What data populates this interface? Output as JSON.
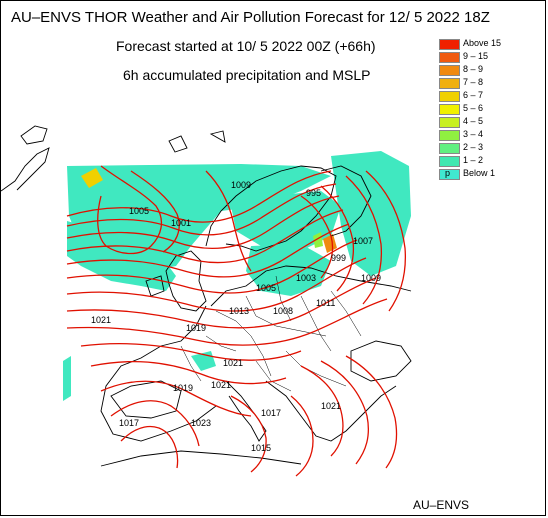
{
  "header": {
    "title": "AU–ENVS THOR Weather and Air Pollution Forecast for 12/ 5 2022  18Z",
    "subtitle": "Forecast started at 10/ 5 2022  00Z (+66h)",
    "product": "6h accumulated precipitation and MSLP"
  },
  "legend": {
    "items": [
      {
        "label": "Above   15",
        "color": "#f02000"
      },
      {
        "label": "9 – 15",
        "color": "#f05a10"
      },
      {
        "label": "8 –  9",
        "color": "#f08a10"
      },
      {
        "label": "7 –  8",
        "color": "#f0b010"
      },
      {
        "label": "6 –  7",
        "color": "#f0d000"
      },
      {
        "label": "5 –  6",
        "color": "#f0f000"
      },
      {
        "label": "4 –  5",
        "color": "#c8f020"
      },
      {
        "label": "3 –  4",
        "color": "#90f040"
      },
      {
        "label": "2 –  3",
        "color": "#60f080"
      },
      {
        "label": "1 –  2",
        "color": "#40e8b0"
      },
      {
        "label": "Below    1",
        "color": "#40e8d0"
      }
    ],
    "marker": "p"
  },
  "isobar_labels": [
    "1005",
    "1001",
    "1009",
    "995",
    "1007",
    "999",
    "1003",
    "1005",
    "1013",
    "1008",
    "1021",
    "1019",
    "1011",
    "1009",
    "1021",
    "1017",
    "1019",
    "1021",
    "1023",
    "1021",
    "1017",
    "1015"
  ],
  "footer": {
    "credit": "AU–ENVS"
  },
  "colors": {
    "isobar": "#e01000",
    "coast": "#000000",
    "precip": "#40e8c0"
  }
}
